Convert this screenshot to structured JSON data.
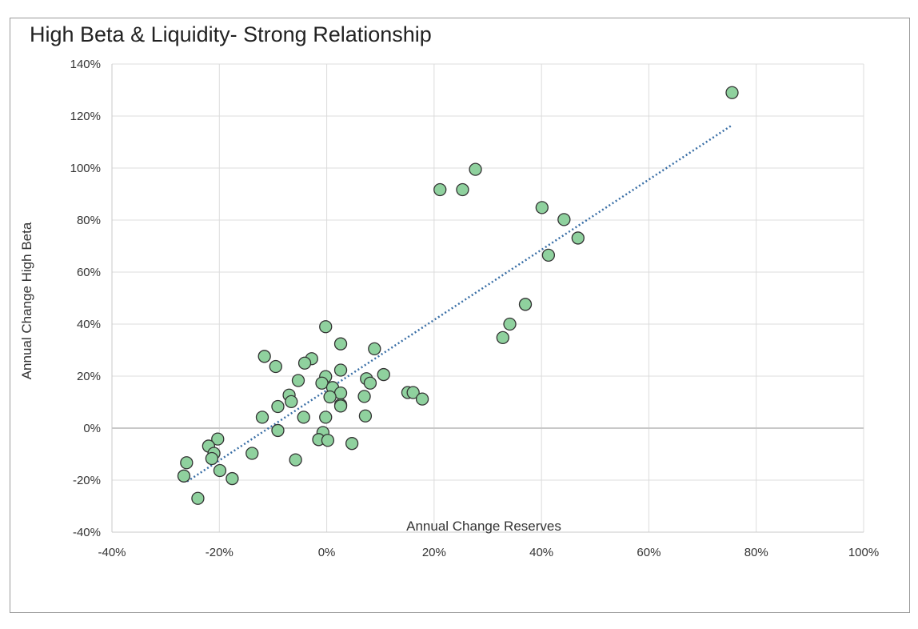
{
  "chart_data": {
    "type": "scatter",
    "title": "High Beta & Liquidity- Strong Relationship",
    "xlabel": "Annual Change Reserves",
    "ylabel": "Annual Change High Beta",
    "xlim": [
      -40,
      100
    ],
    "ylim": [
      -40,
      140
    ],
    "x_ticks": [
      "-40%",
      "-20%",
      "0%",
      "20%",
      "40%",
      "60%",
      "80%",
      "100%"
    ],
    "y_ticks": [
      "-40%",
      "-20%",
      "0%",
      "20%",
      "40%",
      "60%",
      "80%",
      "100%",
      "120%",
      "140%"
    ],
    "grid": true,
    "legend": "none",
    "point_color": "#8fd19e",
    "point_edge_color": "#333333",
    "trendline": {
      "style": "dotted",
      "color": "#3a6fa6",
      "x_start": -26,
      "y_start": -20.5,
      "x_end": 75.5,
      "y_end": 116.5
    },
    "points": [
      {
        "x": 75.5,
        "y": 129
      },
      {
        "x": 27.7,
        "y": 99.5
      },
      {
        "x": 21.1,
        "y": 91.7
      },
      {
        "x": 25.3,
        "y": 91.7
      },
      {
        "x": 40.1,
        "y": 84.8
      },
      {
        "x": 44.2,
        "y": 80.2
      },
      {
        "x": 46.8,
        "y": 73.1
      },
      {
        "x": 41.3,
        "y": 66.5
      },
      {
        "x": 37.0,
        "y": 47.6
      },
      {
        "x": 34.1,
        "y": 40.0
      },
      {
        "x": 32.8,
        "y": 34.8
      },
      {
        "x": -0.2,
        "y": 39.0
      },
      {
        "x": 2.6,
        "y": 32.4
      },
      {
        "x": 8.9,
        "y": 30.5
      },
      {
        "x": -11.6,
        "y": 27.6
      },
      {
        "x": -2.8,
        "y": 26.7
      },
      {
        "x": -4.1,
        "y": 25.0
      },
      {
        "x": -9.5,
        "y": 23.7
      },
      {
        "x": 2.6,
        "y": 22.3
      },
      {
        "x": 10.6,
        "y": 20.6
      },
      {
        "x": -0.2,
        "y": 19.8
      },
      {
        "x": 7.4,
        "y": 19.0
      },
      {
        "x": -5.3,
        "y": 18.3
      },
      {
        "x": 8.1,
        "y": 17.3
      },
      {
        "x": -0.9,
        "y": 17.3
      },
      {
        "x": 1.1,
        "y": 15.6
      },
      {
        "x": 15.1,
        "y": 13.7
      },
      {
        "x": 16.1,
        "y": 13.7
      },
      {
        "x": 2.6,
        "y": 13.5
      },
      {
        "x": -7.0,
        "y": 12.7
      },
      {
        "x": 7.0,
        "y": 12.2
      },
      {
        "x": 0.6,
        "y": 12.0
      },
      {
        "x": 17.8,
        "y": 11.2
      },
      {
        "x": -6.6,
        "y": 10.2
      },
      {
        "x": 2.6,
        "y": 9.0
      },
      {
        "x": 2.6,
        "y": 8.5
      },
      {
        "x": -9.1,
        "y": 8.3
      },
      {
        "x": 7.2,
        "y": 4.7
      },
      {
        "x": -0.2,
        "y": 4.2
      },
      {
        "x": -12.0,
        "y": 4.2
      },
      {
        "x": -4.3,
        "y": 4.2
      },
      {
        "x": -9.1,
        "y": -0.9
      },
      {
        "x": -0.7,
        "y": -1.7
      },
      {
        "x": -1.5,
        "y": -4.4
      },
      {
        "x": 0.2,
        "y": -4.7
      },
      {
        "x": 4.7,
        "y": -5.9
      },
      {
        "x": -20.3,
        "y": -4.2
      },
      {
        "x": -22.0,
        "y": -6.9
      },
      {
        "x": -21.0,
        "y": -9.7
      },
      {
        "x": -21.4,
        "y": -11.7
      },
      {
        "x": -13.9,
        "y": -9.7
      },
      {
        "x": -5.8,
        "y": -12.2
      },
      {
        "x": -26.1,
        "y": -13.3
      },
      {
        "x": -19.9,
        "y": -16.3
      },
      {
        "x": -26.6,
        "y": -18.4
      },
      {
        "x": -17.6,
        "y": -19.4
      },
      {
        "x": -24.0,
        "y": -27.0
      }
    ]
  }
}
